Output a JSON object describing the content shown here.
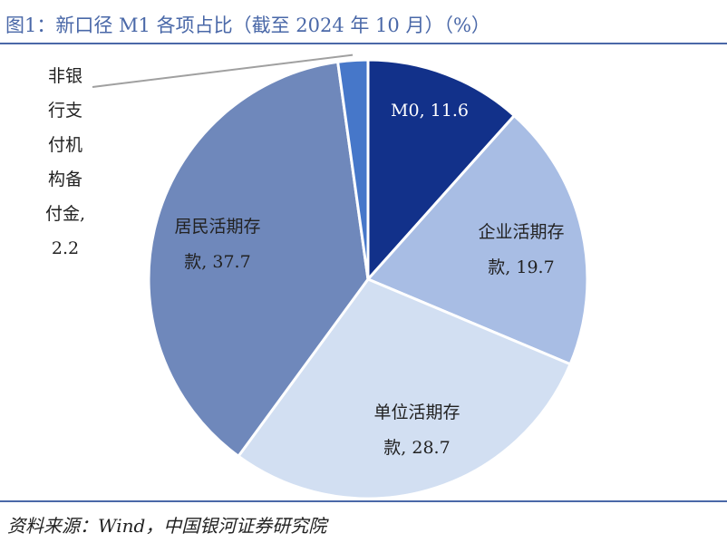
{
  "title": "图1：新口径 M1 各项占比（截至 2024 年 10 月）（%）",
  "source": "资料来源：Wind，中国银河证券研究院",
  "chart_data": {
    "type": "pie",
    "title": "图1：新口径 M1 各项占比（截至 2024 年 10 月）（%）",
    "unit": "%",
    "slices": [
      {
        "name": "M0",
        "value": 11.6,
        "color": "#12318a",
        "label_lines": [
          "M0, 11.6"
        ],
        "label_color": "#ffffff"
      },
      {
        "name": "企业活期存款",
        "value": 19.7,
        "color": "#a8bde4",
        "label_lines": [
          "企业活期存",
          "款, 19.7"
        ],
        "label_color": "#222222"
      },
      {
        "name": "单位活期存款",
        "value": 28.7,
        "color": "#d2dff2",
        "label_lines": [
          "单位活期存",
          "款, 28.7"
        ],
        "label_color": "#222222"
      },
      {
        "name": "居民活期存款",
        "value": 37.7,
        "color": "#6f88bb",
        "label_lines": [
          "居民活期存",
          "款, 37.7"
        ],
        "label_color": "#222222"
      },
      {
        "name": "非银行支付机构备付金",
        "value": 2.2,
        "color": "#4677c9",
        "label_lines": [
          "非银",
          "行支",
          "付机",
          "构备",
          "付金,",
          "2.2"
        ],
        "label_color": "#222222"
      }
    ]
  }
}
